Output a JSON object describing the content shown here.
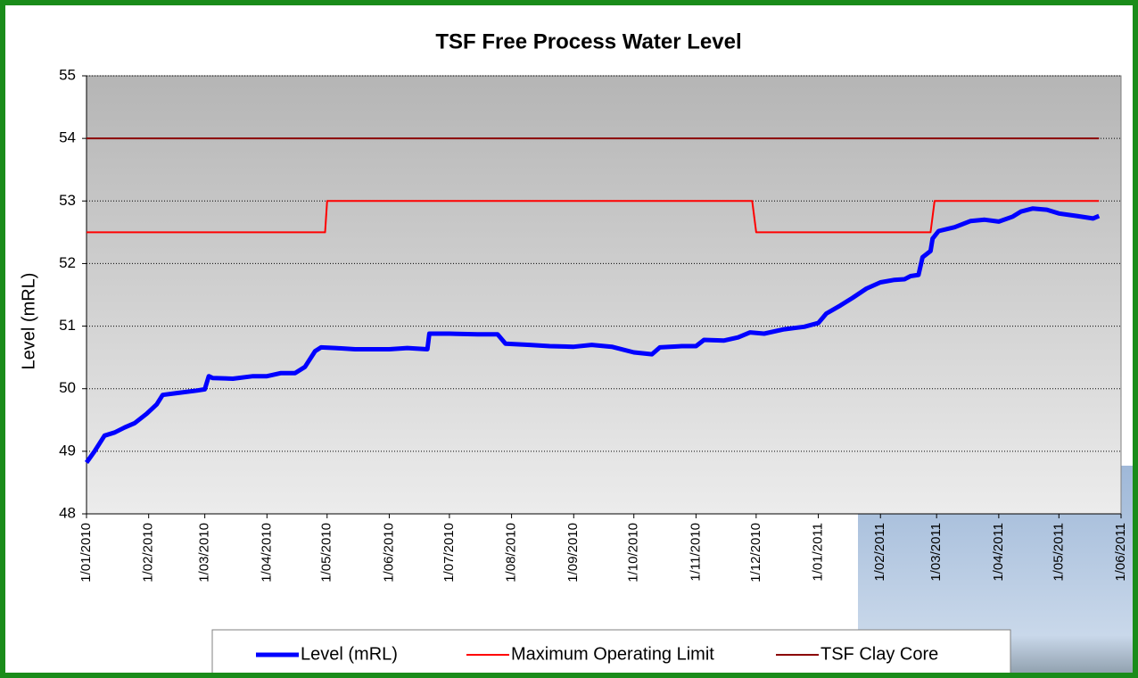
{
  "chart_data": {
    "type": "line",
    "title": "TSF Free Process Water Level",
    "y_label": "Level (mRL)",
    "ylim": [
      48,
      55
    ],
    "yticks": [
      48,
      49,
      50,
      51,
      52,
      53,
      54,
      55
    ],
    "xlim": [
      "1/01/2010",
      "1/06/2011"
    ],
    "xticks": [
      "1/01/2010",
      "1/02/2010",
      "1/03/2010",
      "1/04/2010",
      "1/05/2010",
      "1/06/2010",
      "1/07/2010",
      "1/08/2010",
      "1/09/2010",
      "1/10/2010",
      "1/11/2010",
      "1/12/2010",
      "1/01/2011",
      "1/02/2011",
      "1/03/2011",
      "1/04/2011",
      "1/05/2011",
      "1/06/2011"
    ],
    "grid": true,
    "legend": "bottom",
    "series": [
      {
        "name": "Level (mRL)",
        "color": "#0000ff",
        "x": [
          "1/01/2010",
          "5/01/2010",
          "10/01/2010",
          "15/01/2010",
          "20/01/2010",
          "25/01/2010",
          "31/01/2010",
          "5/02/2010",
          "8/02/2010",
          "15/02/2010",
          "25/02/2010",
          "1/03/2010",
          "3/03/2010",
          "5/03/2010",
          "15/03/2010",
          "25/03/2010",
          "1/04/2010",
          "8/04/2010",
          "15/04/2010",
          "20/04/2010",
          "25/04/2010",
          "28/04/2010",
          "5/05/2010",
          "15/05/2010",
          "1/06/2010",
          "10/06/2010",
          "20/06/2010",
          "21/06/2010",
          "1/07/2010",
          "15/07/2010",
          "25/07/2010",
          "29/07/2010",
          "10/08/2010",
          "20/08/2010",
          "1/09/2010",
          "10/09/2010",
          "20/09/2010",
          "1/10/2010",
          "10/10/2010",
          "14/10/2010",
          "25/10/2010",
          "1/11/2010",
          "5/11/2010",
          "15/11/2010",
          "22/11/2010",
          "28/11/2010",
          "5/12/2010",
          "15/12/2010",
          "25/12/2010",
          "1/01/2011",
          "5/01/2011",
          "12/01/2011",
          "18/01/2011",
          "25/01/2011",
          "1/02/2011",
          "8/02/2011",
          "13/02/2011",
          "16/02/2011",
          "20/02/2011",
          "22/02/2011",
          "26/02/2011",
          "27/02/2011",
          "2/03/2011",
          "10/03/2011",
          "18/03/2011",
          "25/03/2011",
          "1/04/2011",
          "8/04/2011",
          "12/04/2011",
          "18/04/2011",
          "25/04/2011",
          "1/05/2011",
          "10/05/2011",
          "18/05/2011",
          "21/05/2011"
        ],
        "values": [
          48.82,
          49.0,
          49.25,
          49.3,
          49.38,
          49.45,
          49.6,
          49.75,
          49.9,
          49.93,
          49.97,
          49.99,
          50.2,
          50.17,
          50.16,
          50.2,
          50.2,
          50.25,
          50.25,
          50.35,
          50.6,
          50.66,
          50.65,
          50.63,
          50.63,
          50.65,
          50.63,
          50.88,
          50.88,
          50.87,
          50.87,
          50.72,
          50.7,
          50.68,
          50.67,
          50.7,
          50.67,
          50.58,
          50.55,
          50.66,
          50.68,
          50.68,
          50.78,
          50.77,
          50.82,
          50.9,
          50.88,
          50.95,
          50.99,
          51.05,
          51.2,
          51.33,
          51.45,
          51.6,
          51.7,
          51.74,
          51.75,
          51.8,
          51.82,
          52.1,
          52.2,
          52.4,
          52.52,
          52.58,
          52.68,
          52.7,
          52.67,
          52.75,
          52.83,
          52.88,
          52.86,
          52.8,
          52.76,
          52.72,
          52.76
        ]
      },
      {
        "name": "Maximum Operating Limit",
        "color": "#ff0000",
        "x": [
          "1/01/2010",
          "30/04/2010",
          "1/05/2010",
          "29/11/2010",
          "1/12/2010",
          "26/02/2011",
          "28/02/2011",
          "21/05/2011"
        ],
        "values": [
          52.5,
          52.5,
          53,
          53,
          52.5,
          52.5,
          53,
          53
        ]
      },
      {
        "name": "TSF Clay Core",
        "color": "#8b0000",
        "x": [
          "1/01/2010",
          "21/05/2011"
        ],
        "values": [
          54,
          54
        ]
      }
    ]
  }
}
